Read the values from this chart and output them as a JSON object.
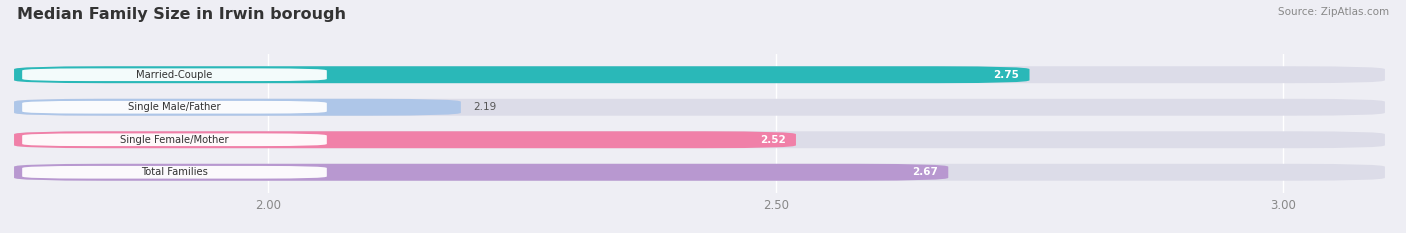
{
  "title": "Median Family Size in Irwin borough",
  "source": "Source: ZipAtlas.com",
  "categories": [
    "Married-Couple",
    "Single Male/Father",
    "Single Female/Mother",
    "Total Families"
  ],
  "values": [
    2.75,
    2.19,
    2.52,
    2.67
  ],
  "colors": [
    "#2ab8b8",
    "#aec6e8",
    "#f080a8",
    "#b898d0"
  ],
  "xmin": 1.75,
  "xmax": 3.1,
  "xticks": [
    2.0,
    2.5,
    3.0
  ],
  "bar_height": 0.52,
  "background_color": "#eeeef4",
  "bar_bg_color": "#dcdce8",
  "value_inside_color": "white",
  "value_outside_color": "#555555",
  "label_text_color": "#333333",
  "title_color": "#333333",
  "source_color": "#888888",
  "grid_color": "#ffffff",
  "tick_color": "#888888"
}
